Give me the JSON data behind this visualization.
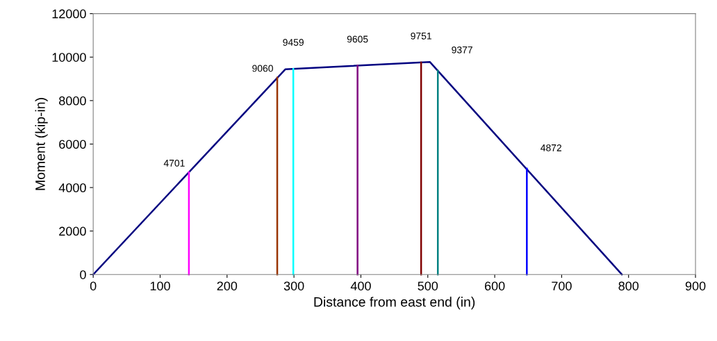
{
  "chart_data": {
    "type": "line",
    "xlabel": "Distance from east end (in)",
    "ylabel": "Moment (kip-in)",
    "xlim": [
      0,
      900
    ],
    "xticks": [
      0,
      100,
      200,
      300,
      400,
      500,
      600,
      700,
      800,
      900
    ],
    "ylim": [
      0,
      12000
    ],
    "yticks": [
      0,
      2000,
      4000,
      6000,
      8000,
      10000,
      12000
    ],
    "grid": false,
    "legend": false,
    "marker": "none",
    "line_style": "solid",
    "series": [
      {
        "color": "#000080",
        "x": [
          0,
          287,
          503,
          790
        ],
        "values": [
          0,
          9440,
          9780,
          0
        ]
      },
      {
        "color": "#ff00ff",
        "x": [
          143,
          143
        ],
        "values": [
          0,
          4701
        ]
      },
      {
        "color": "#993300",
        "x": [
          275,
          275
        ],
        "values": [
          0,
          9060
        ]
      },
      {
        "color": "#00ffff",
        "x": [
          299,
          299
        ],
        "values": [
          0,
          9459
        ]
      },
      {
        "color": "#800080",
        "x": [
          395,
          395
        ],
        "values": [
          0,
          9605
        ]
      },
      {
        "color": "#800000",
        "x": [
          490,
          490
        ],
        "values": [
          0,
          9751
        ]
      },
      {
        "color": "#008080",
        "x": [
          515,
          515
        ],
        "values": [
          0,
          9377
        ]
      },
      {
        "color": "#0000ff",
        "x": [
          648,
          648
        ],
        "values": [
          0,
          4872
        ]
      }
    ],
    "annotations": [
      {
        "text": "4701",
        "x": 143,
        "y": 4701
      },
      {
        "text": "9060",
        "x": 275,
        "y": 9060
      },
      {
        "text": "9459",
        "x": 299,
        "y": 9459
      },
      {
        "text": "9605",
        "x": 395,
        "y": 9605
      },
      {
        "text": "9751",
        "x": 490,
        "y": 9751
      },
      {
        "text": "9377",
        "x": 515,
        "y": 9377
      },
      {
        "text": "4872",
        "x": 648,
        "y": 4872
      }
    ]
  }
}
